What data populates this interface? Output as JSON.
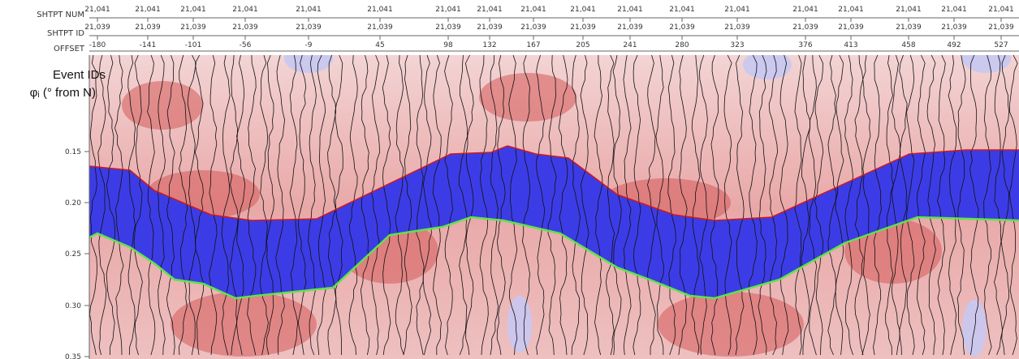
{
  "header": {
    "labels": [
      "SHTPT NUM",
      "SHTPT ID",
      "OFFSET"
    ],
    "columns": [
      {
        "num": "21,041",
        "id": "21,039",
        "offset": "-180"
      },
      {
        "num": "21,041",
        "id": "21,039",
        "offset": "-141"
      },
      {
        "num": "21,041",
        "id": "21,039",
        "offset": "-101"
      },
      {
        "num": "21,041",
        "id": "21,039",
        "offset": "-56"
      },
      {
        "num": "21,041",
        "id": "21,039",
        "offset": "-9"
      },
      {
        "num": "21,041",
        "id": "21,039",
        "offset": "45"
      },
      {
        "num": "21,041",
        "id": "21,039",
        "offset": "98"
      },
      {
        "num": "21,041",
        "id": "21,039",
        "offset": "132"
      },
      {
        "num": "21,041",
        "id": "21,039",
        "offset": "167"
      },
      {
        "num": "21,041",
        "id": "21,039",
        "offset": "205"
      },
      {
        "num": "21,041",
        "id": "21,039",
        "offset": "241"
      },
      {
        "num": "21,041",
        "id": "21,039",
        "offset": "280"
      },
      {
        "num": "21,041",
        "id": "21,039",
        "offset": "323"
      },
      {
        "num": "21,041",
        "id": "21,039",
        "offset": "376"
      },
      {
        "num": "21,041",
        "id": "21,039",
        "offset": "413"
      },
      {
        "num": "21,041",
        "id": "21,039",
        "offset": "458"
      },
      {
        "num": "21,041",
        "id": "21,039",
        "offset": "492"
      },
      {
        "num": "21,041",
        "id": "21,039",
        "offset": "527"
      }
    ]
  },
  "overlay": [
    "Event IDs",
    "φᵢ (° from N)"
  ],
  "axis": {
    "ticks": [
      "0.15",
      "0.20",
      "0.25",
      "0.30",
      "0.35"
    ]
  }
}
